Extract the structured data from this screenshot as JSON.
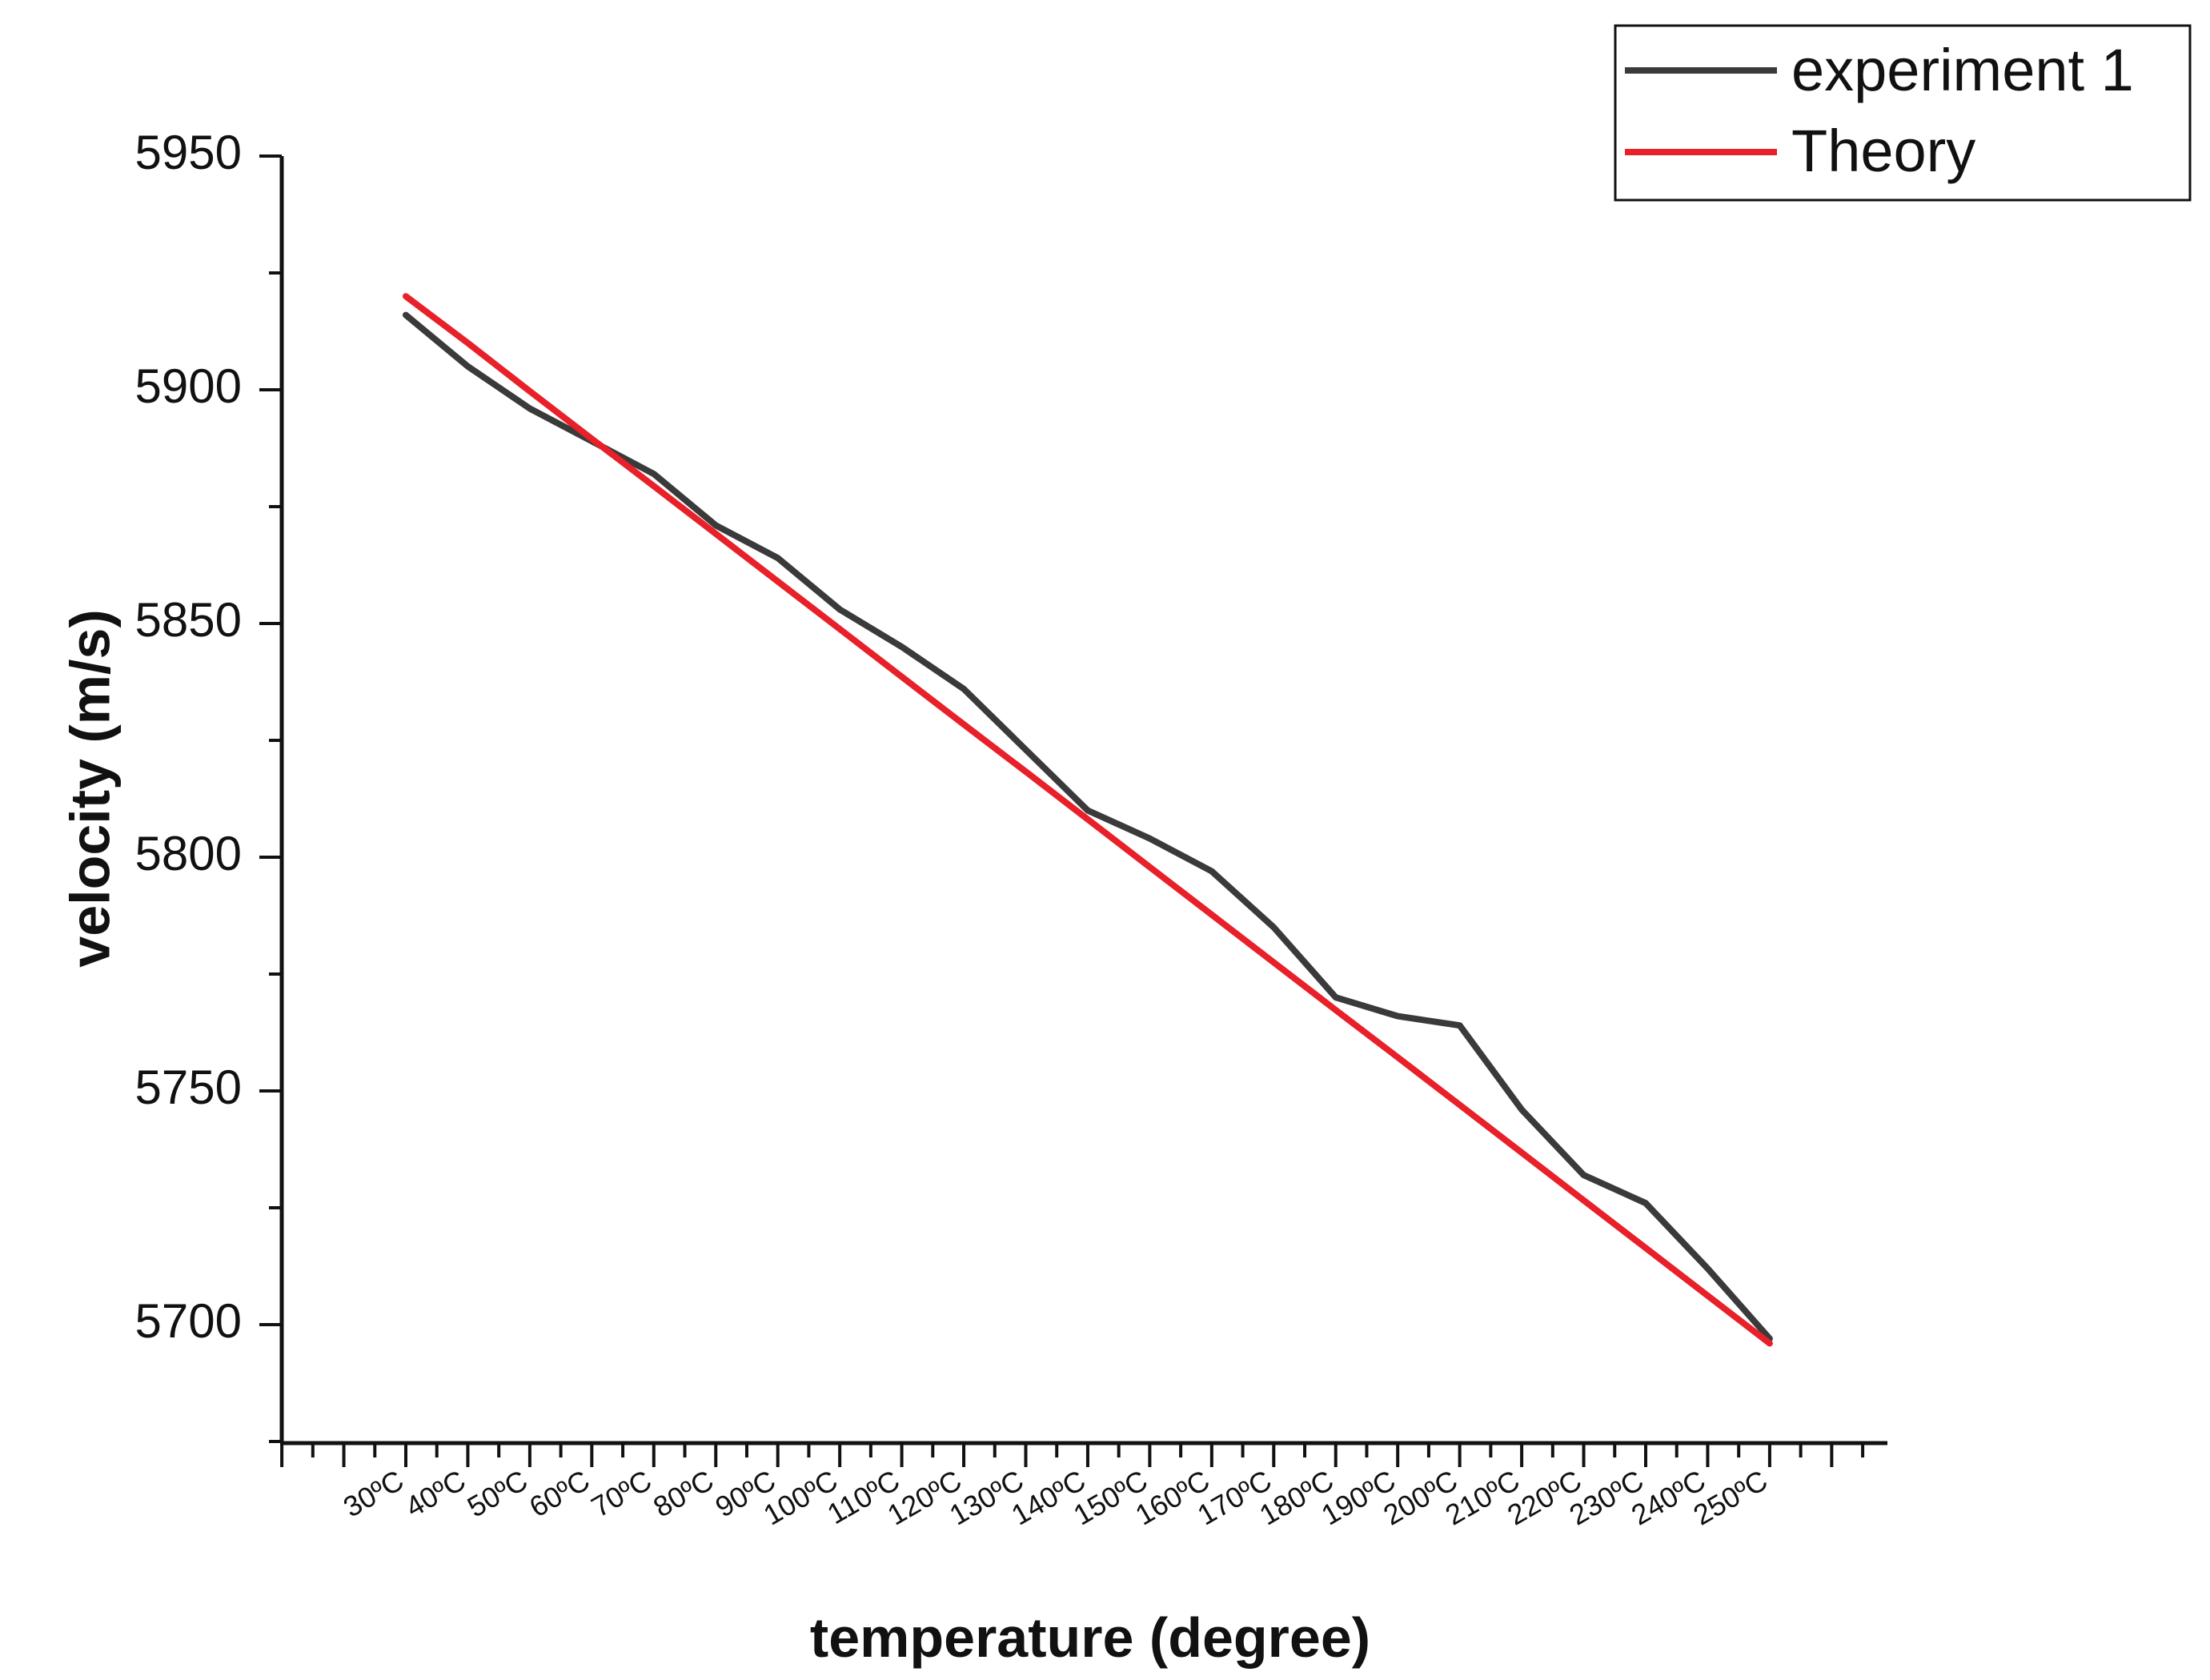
{
  "chart_data": {
    "type": "line",
    "xlabel": "temperature (degree)",
    "ylabel": "velocity (m/s)",
    "ylim": [
      5675,
      5950
    ],
    "yticks": [
      5700,
      5750,
      5800,
      5850,
      5900,
      5950
    ],
    "categories": [
      "30ºC",
      "40ºC",
      "50ºC",
      "60ºC",
      "70ºC",
      "80ºC",
      "90ºC",
      "100ºC",
      "110ºC",
      "120ºC",
      "130ºC",
      "140ºC",
      "150ºC",
      "160ºC",
      "170ºC",
      "180ºC",
      "190ºC",
      "200ºC",
      "210ºC",
      "220ºC",
      "230ºC",
      "240ºC",
      "250ºC"
    ],
    "legend_position": "top-right",
    "grid": false,
    "series": [
      {
        "name": "experiment 1",
        "color": "#3a3a3a",
        "values": [
          5916,
          5905,
          5896,
          5889,
          5882,
          5871,
          5864,
          5853,
          5845,
          5836,
          5823,
          5810,
          5804,
          5797,
          5785,
          5770,
          5766,
          5764,
          5746,
          5732,
          5726,
          5712,
          5697
        ]
      },
      {
        "name": "Theory",
        "color": "#e8202a",
        "values": [
          5920,
          5910,
          5899.7,
          5889.5,
          5879.4,
          5869.2,
          5859,
          5848.8,
          5838.6,
          5828.4,
          5818.3,
          5808.1,
          5797.9,
          5787.7,
          5777.5,
          5767.3,
          5757.2,
          5747,
          5736.8,
          5726.6,
          5716.4,
          5706.2,
          5696
        ]
      }
    ]
  }
}
